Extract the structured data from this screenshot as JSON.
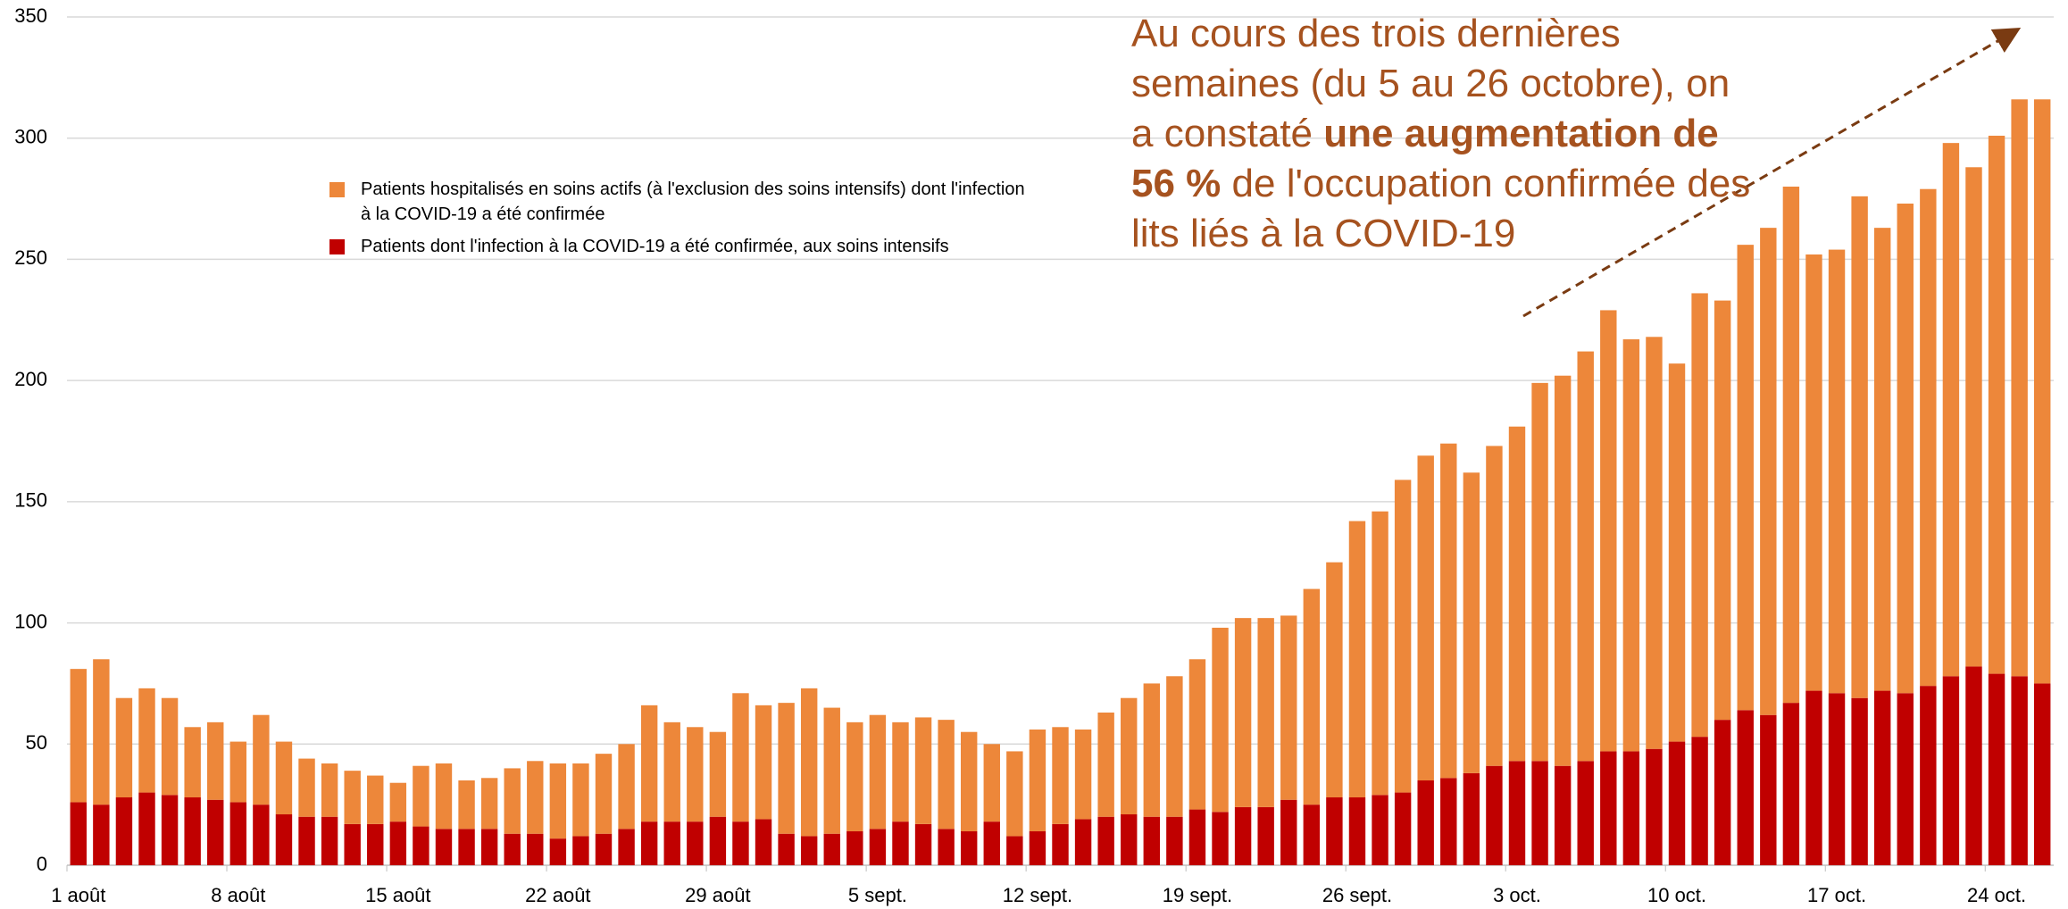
{
  "chart_data": {
    "type": "stacked_bar",
    "categories": [
      "1 août",
      null,
      null,
      null,
      null,
      null,
      null,
      "8 août",
      null,
      null,
      null,
      null,
      null,
      null,
      "15 août",
      null,
      null,
      null,
      null,
      null,
      null,
      "22 août",
      null,
      null,
      null,
      null,
      null,
      null,
      "29 août",
      null,
      null,
      null,
      null,
      null,
      null,
      "5 sept.",
      null,
      null,
      null,
      null,
      null,
      null,
      "12 sept.",
      null,
      null,
      null,
      null,
      null,
      null,
      "19 sept.",
      null,
      null,
      null,
      null,
      null,
      null,
      "26 sept.",
      null,
      null,
      null,
      null,
      null,
      null,
      "3 oct.",
      null,
      null,
      null,
      null,
      null,
      null,
      "10 oct.",
      null,
      null,
      null,
      null,
      null,
      null,
      "17 oct.",
      null,
      null,
      null,
      null,
      null,
      null,
      "24 oct.",
      null,
      null
    ],
    "series": [
      {
        "name": "Patients dont l'infection à la COVID-19 a été confirmée, aux soins intensifs",
        "color": "#c00000",
        "values": [
          26,
          25,
          28,
          30,
          29,
          28,
          27,
          26,
          25,
          21,
          20,
          20,
          17,
          17,
          18,
          16,
          15,
          15,
          15,
          13,
          13,
          11,
          12,
          13,
          15,
          18,
          18,
          18,
          20,
          18,
          19,
          13,
          12,
          13,
          14,
          15,
          18,
          17,
          15,
          14,
          18,
          12,
          14,
          17,
          19,
          20,
          21,
          20,
          20,
          23,
          22,
          24,
          24,
          27,
          25,
          28,
          28,
          29,
          30,
          35,
          36,
          38,
          41,
          43,
          43,
          41,
          43,
          47,
          47,
          48,
          51,
          53,
          60,
          64,
          62,
          67,
          72,
          71,
          69,
          72,
          71,
          74,
          78,
          82,
          79,
          78,
          75
        ]
      },
      {
        "name": "Patients hospitalisés en soins actifs (à l'exclusion des soins intensifs) dont l'infection à la COVID-19 a été confirmée",
        "color": "#ed873a",
        "values": [
          55,
          60,
          41,
          43,
          40,
          29,
          32,
          25,
          37,
          30,
          24,
          22,
          22,
          20,
          16,
          25,
          27,
          20,
          21,
          27,
          30,
          31,
          30,
          33,
          35,
          48,
          41,
          39,
          35,
          53,
          47,
          54,
          61,
          52,
          45,
          47,
          41,
          44,
          45,
          41,
          32,
          35,
          42,
          40,
          37,
          43,
          48,
          55,
          58,
          62,
          76,
          78,
          78,
          76,
          89,
          97,
          114,
          117,
          129,
          134,
          138,
          124,
          132,
          138,
          156,
          161,
          169,
          182,
          170,
          170,
          156,
          183,
          173,
          192,
          201,
          213,
          180,
          183,
          207,
          191,
          202,
          205,
          220,
          206,
          222,
          238,
          241
        ]
      }
    ],
    "ylim": [
      0,
      350
    ],
    "yticks": [
      0,
      50,
      100,
      150,
      200,
      250,
      300,
      350
    ],
    "grid": true,
    "annotation": [
      "Au cours des trois dernières semaines (du 5 au 26 octobre), on a constaté ",
      "une augmentation de 56 %",
      " de l'occupation confirmée des lits liés à la COVID-19"
    ]
  }
}
